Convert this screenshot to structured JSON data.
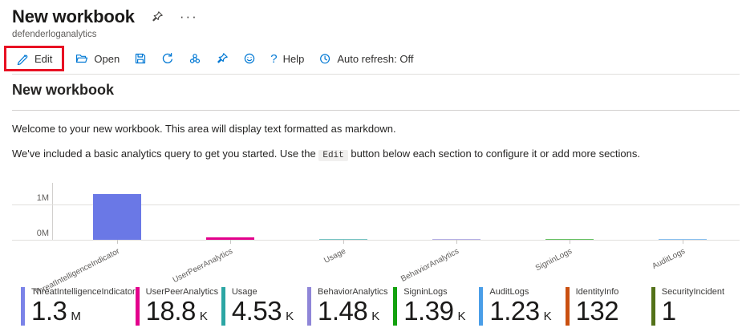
{
  "header": {
    "title": "New workbook",
    "subtitle": "defenderloganalytics",
    "ellipsis": "···"
  },
  "toolbar": {
    "edit_label": "Edit",
    "open_label": "Open",
    "help_icon": "?",
    "help_label": "Help",
    "auto_refresh_label": "Auto refresh: Off",
    "icon_names": [
      "pencil-icon",
      "folder-icon",
      "save-icon",
      "refresh-icon",
      "share-icon",
      "pin-icon",
      "smiley-icon",
      "clock-icon"
    ],
    "accent_color": "#0078d4",
    "annotation_color": "#e81123"
  },
  "section": {
    "heading": "New workbook",
    "welcome_text": "Welcome to your new workbook. This area will display text formatted as markdown.",
    "hint_before": "We've included a basic analytics query to get you started. Use the ",
    "hint_code": "Edit",
    "hint_after": " button below each section to configure it or add more sections."
  },
  "chart_data": {
    "type": "bar",
    "title": "",
    "xlabel": "",
    "ylabel": "",
    "categories": [
      "ThreatIntelligenceIndicator",
      "UserPeerAnalytics",
      "Usage",
      "BehaviorAnalytics",
      "SigninLogs",
      "AuditLogs"
    ],
    "values": [
      1300000,
      18800,
      4530,
      1480,
      1390,
      1230
    ],
    "series_colors": [
      "#6a78e6",
      "#e3008c",
      "#2ca6a4",
      "#8f86d8",
      "#13a10e",
      "#4a9ee8"
    ],
    "ytick_labels": [
      "1M",
      "0M"
    ],
    "ytick_values": [
      1000000,
      0
    ],
    "ylim": [
      0,
      1450000
    ],
    "grid": "horizontal",
    "legend": "none",
    "xlabel_rotation_deg": -27
  },
  "tiles": [
    {
      "label": "ThreatIntelligenceIndicator",
      "value": "1.3",
      "suffix": "M",
      "color": "#7b83e8"
    },
    {
      "label": "UserPeerAnalytics",
      "value": "18.8",
      "suffix": "K",
      "color": "#e3008c"
    },
    {
      "label": "Usage",
      "value": "4.53",
      "suffix": "K",
      "color": "#2ca6a4"
    },
    {
      "label": "BehaviorAnalytics",
      "value": "1.48",
      "suffix": "K",
      "color": "#8f86d8"
    },
    {
      "label": "SigninLogs",
      "value": "1.39",
      "suffix": "K",
      "color": "#13a10e"
    },
    {
      "label": "AuditLogs",
      "value": "1.23",
      "suffix": "K",
      "color": "#4a9ee8"
    },
    {
      "label": "IdentityInfo",
      "value": "132",
      "suffix": "",
      "color": "#ca5010"
    },
    {
      "label": "SecurityIncident",
      "value": "1",
      "suffix": "",
      "color": "#537119"
    }
  ]
}
